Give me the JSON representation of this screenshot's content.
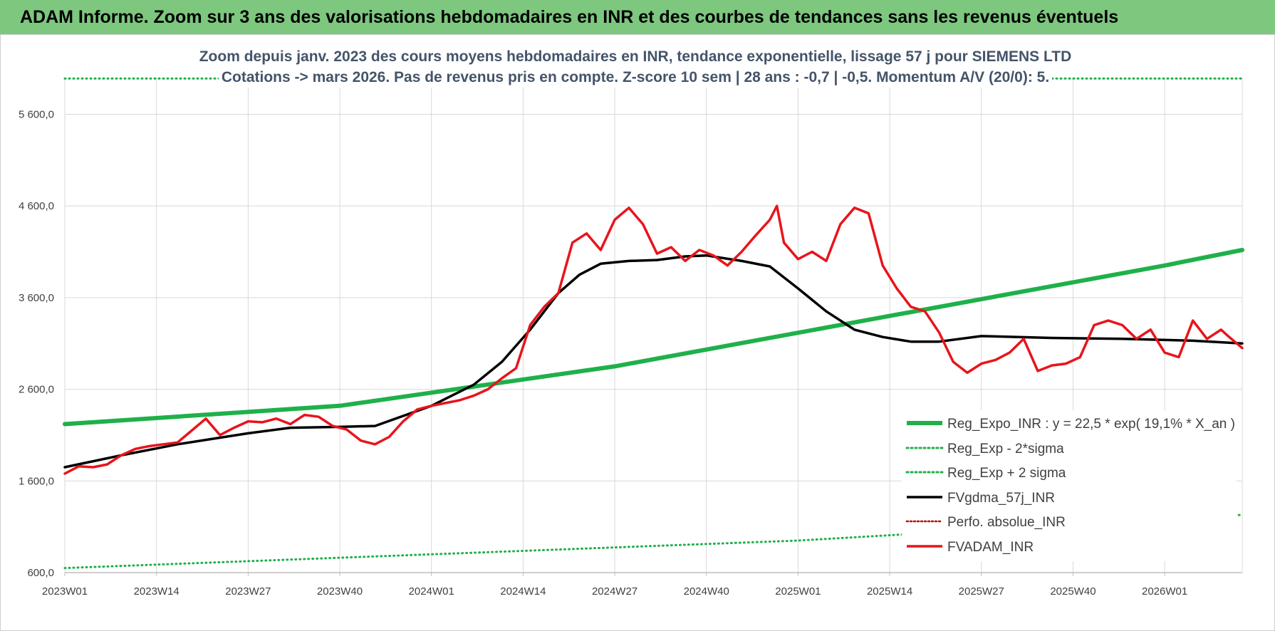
{
  "header": {
    "title": "ADAM Informe. Zoom sur 3 ans des valorisations hebdomadaires en INR et des courbes de tendances sans les revenus éventuels"
  },
  "colors": {
    "header_bg": "#7dc77f",
    "trend_green": "#1fb04a",
    "sigma_green": "#1fb04a",
    "gdma_black": "#000000",
    "perfo_red": "#c00000",
    "price_red": "#e8141b",
    "grid": "#d9d9d9"
  },
  "chart_data": {
    "type": "line",
    "subtitle_line1": "Zoom depuis janv. 2023 des cours moyens hebdomadaires en INR, tendance exponentielle, lissage 57 j pour SIEMENS LTD",
    "subtitle_line2": "Cotations -> mars 2026. Pas de revenus pris en compte. Z-score 10 sem  | 28 ans : -0,7 | -0,5. Momentum A/V (20/0): 5.",
    "xlabel": "",
    "ylabel": "",
    "x_range_weeks": [
      0,
      167
    ],
    "ylim": [
      600,
      6000
    ],
    "y_ticks": [
      600,
      1600,
      2600,
      3600,
      4600,
      5600
    ],
    "y_tick_labels": [
      "600,0",
      "1 600,0",
      "2 600,0",
      "3 600,0",
      "4 600,0",
      "5 600,0"
    ],
    "x_ticks": [
      0,
      13,
      26,
      39,
      52,
      65,
      78,
      91,
      104,
      117,
      130,
      143,
      156
    ],
    "x_tick_labels": [
      "2023W01",
      "2023W14",
      "2023W27",
      "2023W40",
      "2024W01",
      "2024W14",
      "2024W27",
      "2024W40",
      "2025W01",
      "2025W14",
      "2025W27",
      "2025W40",
      "2026W01"
    ],
    "grid": true,
    "legend_position": "bottom-right",
    "series": [
      {
        "name": "Reg_Expo_INR : y = 22,5 * exp( 19,1% *  X_an )",
        "style": "solid",
        "color": "#1fb04a",
        "width": 6,
        "points": [
          [
            0,
            2220
          ],
          [
            39,
            2420
          ],
          [
            78,
            2850
          ],
          [
            117,
            3400
          ],
          [
            156,
            3950
          ],
          [
            167,
            4120
          ]
        ]
      },
      {
        "name": "Reg_Exp - 2*sigma",
        "style": "dotted",
        "color": "#1fb04a",
        "width": 3,
        "points": [
          [
            0,
            650
          ],
          [
            52,
            800
          ],
          [
            104,
            950
          ],
          [
            167,
            1230
          ]
        ]
      },
      {
        "name": "Reg_Exp + 2 sigma",
        "style": "dotted",
        "color": "#1fb04a",
        "width": 3,
        "points": [
          [
            0,
            5990
          ],
          [
            167,
            5990
          ]
        ]
      },
      {
        "name": "FVgdma_57j_INR",
        "style": "solid",
        "color": "#000000",
        "width": 3.5,
        "points": [
          [
            0,
            1750
          ],
          [
            8,
            1880
          ],
          [
            16,
            2000
          ],
          [
            26,
            2120
          ],
          [
            32,
            2180
          ],
          [
            39,
            2190
          ],
          [
            44,
            2200
          ],
          [
            52,
            2420
          ],
          [
            58,
            2650
          ],
          [
            62,
            2900
          ],
          [
            66,
            3250
          ],
          [
            70,
            3650
          ],
          [
            73,
            3850
          ],
          [
            76,
            3970
          ],
          [
            80,
            4000
          ],
          [
            84,
            4010
          ],
          [
            88,
            4050
          ],
          [
            91,
            4060
          ],
          [
            96,
            4000
          ],
          [
            100,
            3940
          ],
          [
            104,
            3700
          ],
          [
            108,
            3450
          ],
          [
            112,
            3250
          ],
          [
            116,
            3170
          ],
          [
            120,
            3120
          ],
          [
            124,
            3120
          ],
          [
            130,
            3180
          ],
          [
            140,
            3160
          ],
          [
            150,
            3150
          ],
          [
            160,
            3130
          ],
          [
            167,
            3100
          ]
        ]
      },
      {
        "name": "Perfo. absolue_INR",
        "style": "dotted",
        "color": "#c00000",
        "width": 3,
        "points": []
      },
      {
        "name": "FVADAM_INR",
        "style": "solid",
        "color": "#e8141b",
        "width": 3.5,
        "points": [
          [
            0,
            1680
          ],
          [
            2,
            1760
          ],
          [
            4,
            1750
          ],
          [
            6,
            1780
          ],
          [
            8,
            1880
          ],
          [
            10,
            1950
          ],
          [
            12,
            1980
          ],
          [
            14,
            2000
          ],
          [
            16,
            2020
          ],
          [
            18,
            2150
          ],
          [
            20,
            2280
          ],
          [
            22,
            2100
          ],
          [
            24,
            2180
          ],
          [
            26,
            2250
          ],
          [
            28,
            2240
          ],
          [
            30,
            2280
          ],
          [
            32,
            2220
          ],
          [
            34,
            2320
          ],
          [
            36,
            2300
          ],
          [
            38,
            2200
          ],
          [
            40,
            2160
          ],
          [
            42,
            2040
          ],
          [
            44,
            2000
          ],
          [
            46,
            2080
          ],
          [
            48,
            2250
          ],
          [
            50,
            2380
          ],
          [
            52,
            2420
          ],
          [
            54,
            2450
          ],
          [
            56,
            2480
          ],
          [
            58,
            2530
          ],
          [
            60,
            2600
          ],
          [
            62,
            2720
          ],
          [
            64,
            2830
          ],
          [
            66,
            3300
          ],
          [
            68,
            3500
          ],
          [
            70,
            3650
          ],
          [
            72,
            4200
          ],
          [
            74,
            4300
          ],
          [
            76,
            4120
          ],
          [
            78,
            4450
          ],
          [
            80,
            4580
          ],
          [
            82,
            4400
          ],
          [
            84,
            4080
          ],
          [
            86,
            4150
          ],
          [
            88,
            4000
          ],
          [
            90,
            4120
          ],
          [
            92,
            4060
          ],
          [
            94,
            3950
          ],
          [
            96,
            4100
          ],
          [
            98,
            4280
          ],
          [
            100,
            4450
          ],
          [
            101,
            4600
          ],
          [
            102,
            4200
          ],
          [
            104,
            4020
          ],
          [
            106,
            4100
          ],
          [
            108,
            4000
          ],
          [
            110,
            4400
          ],
          [
            112,
            4580
          ],
          [
            114,
            4520
          ],
          [
            116,
            3950
          ],
          [
            118,
            3700
          ],
          [
            120,
            3500
          ],
          [
            122,
            3450
          ],
          [
            124,
            3220
          ],
          [
            126,
            2900
          ],
          [
            128,
            2780
          ],
          [
            130,
            2880
          ],
          [
            132,
            2920
          ],
          [
            134,
            3000
          ],
          [
            136,
            3150
          ],
          [
            138,
            2800
          ],
          [
            140,
            2860
          ],
          [
            142,
            2880
          ],
          [
            144,
            2950
          ],
          [
            146,
            3300
          ],
          [
            148,
            3350
          ],
          [
            150,
            3300
          ],
          [
            152,
            3150
          ],
          [
            154,
            3250
          ],
          [
            156,
            3000
          ],
          [
            158,
            2950
          ],
          [
            160,
            3350
          ],
          [
            162,
            3150
          ],
          [
            164,
            3250
          ],
          [
            165,
            3180
          ],
          [
            167,
            3050
          ]
        ]
      }
    ]
  }
}
